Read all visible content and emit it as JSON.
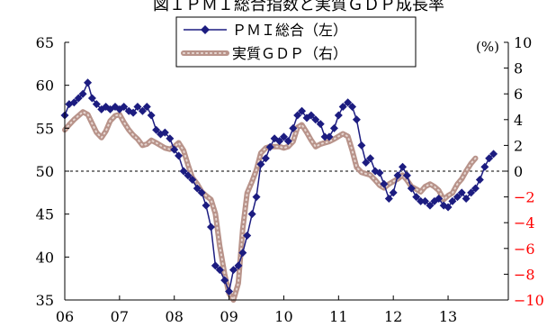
{
  "chart_data": {
    "type": "line",
    "title": "図１ＰＭＩ総合指数と実質ＧＤＰ成長率",
    "right_unit": "(%)",
    "x_ticks": [
      "06",
      "07",
      "08",
      "09",
      "10",
      "11",
      "12",
      "13"
    ],
    "x_range": [
      2006,
      2014.1
    ],
    "left_axis": {
      "ticks": [
        "65",
        "60",
        "55",
        "50",
        "45",
        "40",
        "35"
      ],
      "range": [
        35,
        65
      ]
    },
    "right_axis": {
      "ticks": [
        "10",
        "8",
        "6",
        "4",
        "2",
        "0",
        "−2",
        "−4",
        "−6",
        "−8",
        "−10"
      ],
      "range": [
        -10,
        10
      ],
      "negative_color": "#ff0000"
    },
    "reference_line": {
      "axis": "left",
      "value": 50,
      "style": "dashed"
    },
    "series": [
      {
        "name": "ＰＭＩ総合（左）",
        "axis": "left",
        "color": "#1c1c80",
        "marker": "diamond",
        "x": [
          2006.0,
          2006.08,
          2006.17,
          2006.25,
          2006.33,
          2006.42,
          2006.5,
          2006.58,
          2006.67,
          2006.75,
          2006.83,
          2006.92,
          2007.0,
          2007.08,
          2007.17,
          2007.25,
          2007.33,
          2007.42,
          2007.5,
          2007.58,
          2007.67,
          2007.75,
          2007.83,
          2007.92,
          2008.0,
          2008.08,
          2008.17,
          2008.25,
          2008.33,
          2008.42,
          2008.5,
          2008.58,
          2008.67,
          2008.75,
          2008.83,
          2008.92,
          2009.0,
          2009.08,
          2009.17,
          2009.25,
          2009.33,
          2009.42,
          2009.5,
          2009.58,
          2009.67,
          2009.75,
          2009.83,
          2009.92,
          2010.0,
          2010.08,
          2010.17,
          2010.25,
          2010.33,
          2010.42,
          2010.5,
          2010.58,
          2010.67,
          2010.75,
          2010.83,
          2010.92,
          2011.0,
          2011.08,
          2011.17,
          2011.25,
          2011.33,
          2011.42,
          2011.5,
          2011.58,
          2011.67,
          2011.75,
          2011.83,
          2011.92,
          2012.0,
          2012.08,
          2012.17,
          2012.25,
          2012.33,
          2012.42,
          2012.5,
          2012.58,
          2012.67,
          2012.75,
          2012.83,
          2012.92,
          2013.0,
          2013.08,
          2013.17,
          2013.25,
          2013.33,
          2013.42,
          2013.5,
          2013.58,
          2013.67,
          2013.75,
          2013.83
        ],
        "values": [
          56.5,
          57.8,
          58.0,
          58.5,
          59.0,
          60.3,
          58.5,
          57.8,
          57.2,
          57.5,
          57.2,
          57.5,
          57.2,
          57.5,
          57.0,
          56.8,
          57.5,
          57.0,
          57.5,
          56.5,
          54.8,
          54.3,
          54.5,
          53.8,
          52.5,
          51.8,
          50.0,
          49.5,
          49.0,
          48.0,
          47.5,
          46.0,
          43.5,
          39.0,
          38.5,
          37.3,
          36.0,
          38.5,
          39.0,
          40.5,
          42.5,
          45.0,
          47.0,
          50.8,
          51.5,
          52.8,
          53.8,
          53.5,
          54.0,
          53.5,
          55.0,
          56.5,
          57.0,
          56.2,
          56.5,
          56.0,
          55.5,
          54.0,
          54.0,
          55.0,
          56.5,
          57.5,
          58.0,
          57.5,
          56.0,
          53.0,
          51.0,
          51.5,
          50.0,
          49.8,
          48.5,
          46.8,
          47.5,
          49.5,
          50.5,
          49.5,
          48.0,
          47.0,
          46.5,
          46.5,
          46.0,
          46.5,
          46.8,
          46.0,
          45.8,
          46.5,
          47.0,
          47.5,
          46.8,
          47.5,
          48.0,
          49.0,
          50.5,
          51.5,
          52.0
        ]
      },
      {
        "name": "実質ＧＤＰ（右）",
        "axis": "right",
        "color": "#b8938a",
        "marker": "circle",
        "x": [
          2006.0,
          2006.08,
          2006.17,
          2006.25,
          2006.33,
          2006.42,
          2006.5,
          2006.58,
          2006.67,
          2006.75,
          2006.83,
          2006.92,
          2007.0,
          2007.08,
          2007.17,
          2007.25,
          2007.33,
          2007.42,
          2007.5,
          2007.58,
          2007.67,
          2007.75,
          2007.83,
          2007.92,
          2008.0,
          2008.08,
          2008.17,
          2008.25,
          2008.33,
          2008.42,
          2008.5,
          2008.58,
          2008.67,
          2008.75,
          2008.83,
          2008.92,
          2009.0,
          2009.08,
          2009.17,
          2009.25,
          2009.33,
          2009.42,
          2009.5,
          2009.58,
          2009.67,
          2009.75,
          2009.83,
          2009.92,
          2010.0,
          2010.08,
          2010.17,
          2010.25,
          2010.33,
          2010.42,
          2010.5,
          2010.58,
          2010.67,
          2010.75,
          2010.83,
          2010.92,
          2011.0,
          2011.08,
          2011.17,
          2011.25,
          2011.33,
          2011.42,
          2011.5,
          2011.58,
          2011.67,
          2011.75,
          2011.83,
          2011.92,
          2012.0,
          2012.08,
          2012.17,
          2012.25,
          2012.33,
          2012.42,
          2012.5,
          2012.58,
          2012.67,
          2012.75,
          2012.83,
          2012.92,
          2013.0,
          2013.08,
          2013.17,
          2013.25,
          2013.33,
          2013.42,
          2013.5
        ],
        "values": [
          3.2,
          3.6,
          4.0,
          4.3,
          4.6,
          4.4,
          3.7,
          3.0,
          2.6,
          3.1,
          3.9,
          4.3,
          4.4,
          3.8,
          3.2,
          2.8,
          2.5,
          2.0,
          2.1,
          2.4,
          2.2,
          2.0,
          1.8,
          1.7,
          1.9,
          2.2,
          1.6,
          0.5,
          -0.5,
          -1.0,
          -1.6,
          -1.9,
          -2.2,
          -3.3,
          -5.8,
          -8.0,
          -9.5,
          -10.0,
          -8.7,
          -4.5,
          -1.7,
          -0.8,
          0.1,
          1.4,
          1.8,
          1.9,
          1.9,
          1.9,
          1.8,
          1.9,
          2.3,
          3.4,
          3.6,
          3.0,
          2.4,
          1.9,
          2.1,
          2.2,
          2.3,
          2.5,
          2.7,
          2.9,
          2.7,
          1.6,
          0.3,
          -0.1,
          -0.2,
          -0.3,
          -0.7,
          -1.1,
          -1.3,
          -1.0,
          -0.8,
          -0.6,
          -0.3,
          -0.7,
          -1.2,
          -1.4,
          -1.6,
          -1.2,
          -1.0,
          -1.2,
          -1.5,
          -2.2,
          -1.9,
          -1.7,
          -1.0,
          -0.6,
          0.0,
          0.6,
          1.0
        ]
      }
    ]
  }
}
